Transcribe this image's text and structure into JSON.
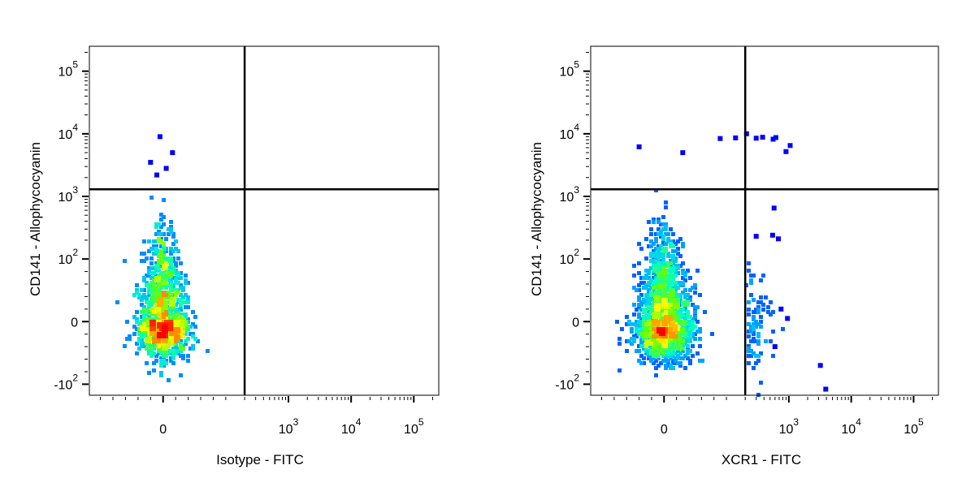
{
  "chart_data": [
    {
      "type": "scatter",
      "plot_style": "flow cytometry density dot plot (pseudocolor)",
      "xlabel": "Isotype - FITC",
      "ylabel": "CD141 - Allophycocyanin",
      "x_scale": "biexponential",
      "y_scale": "biexponential",
      "x_ticks": [
        {
          "value": 0,
          "base": "0",
          "exp": ""
        },
        {
          "value": 1000,
          "base": "10",
          "exp": "3"
        },
        {
          "value": 10000,
          "base": "10",
          "exp": "4"
        },
        {
          "value": 100000,
          "base": "10",
          "exp": "5"
        }
      ],
      "y_ticks": [
        {
          "value": -100,
          "base": "-10",
          "exp": "2"
        },
        {
          "value": 0,
          "base": "0",
          "exp": ""
        },
        {
          "value": 100,
          "base": "10",
          "exp": "2"
        },
        {
          "value": 1000,
          "base": "10",
          "exp": "3"
        },
        {
          "value": 10000,
          "base": "10",
          "exp": "4"
        },
        {
          "value": 100000,
          "base": "10",
          "exp": "5"
        }
      ],
      "xlim": [
        -150,
        250000
      ],
      "ylim": [
        -150,
        250000
      ],
      "quadrant_gate": {
        "x": 200,
        "y": 1300
      },
      "population": {
        "description": "single dense cluster, CD141 negative/low, FITC negative",
        "center": {
          "x": 0,
          "y": 0
        },
        "extends_y_to": 1200,
        "rare_events": [
          {
            "x": -5,
            "y": 9000
          },
          {
            "x": 15,
            "y": 5000
          },
          {
            "x": 5,
            "y": 2800
          },
          {
            "x": -20,
            "y": 3500
          },
          {
            "x": -10,
            "y": 2200
          }
        ]
      },
      "colorscale": [
        "#0000ff",
        "#00aaff",
        "#00ffcc",
        "#66ff00",
        "#ffff00",
        "#ff8800",
        "#ff0000"
      ]
    },
    {
      "type": "scatter",
      "plot_style": "flow cytometry density dot plot (pseudocolor)",
      "xlabel": "XCR1 - FITC",
      "ylabel": "CD141 - Allophycocyanin",
      "x_scale": "biexponential",
      "y_scale": "biexponential",
      "x_ticks": [
        {
          "value": 0,
          "base": "0",
          "exp": ""
        },
        {
          "value": 1000,
          "base": "10",
          "exp": "3"
        },
        {
          "value": 10000,
          "base": "10",
          "exp": "4"
        },
        {
          "value": 100000,
          "base": "10",
          "exp": "5"
        }
      ],
      "y_ticks": [
        {
          "value": -100,
          "base": "-10",
          "exp": "2"
        },
        {
          "value": 0,
          "base": "0",
          "exp": ""
        },
        {
          "value": 100,
          "base": "10",
          "exp": "2"
        },
        {
          "value": 1000,
          "base": "10",
          "exp": "3"
        },
        {
          "value": 10000,
          "base": "10",
          "exp": "4"
        },
        {
          "value": 100000,
          "base": "10",
          "exp": "5"
        }
      ],
      "xlim": [
        -150,
        250000
      ],
      "ylim": [
        -150,
        250000
      ],
      "quadrant_gate": {
        "x": 200,
        "y": 1300
      },
      "population": {
        "description": "dense CD141 negative/low cluster with scattered XCR1+ events and a small CD141+ population",
        "center": {
          "x": 0,
          "y": 0
        },
        "extends_y_to": 1300,
        "rare_events": [
          {
            "x": 300,
            "y": 8500
          },
          {
            "x": 380,
            "y": 8800
          },
          {
            "x": 560,
            "y": 8200
          },
          {
            "x": 620,
            "y": 8700
          },
          {
            "x": 1050,
            "y": 6500
          },
          {
            "x": 900,
            "y": 5200
          },
          {
            "x": 210,
            "y": 10000
          },
          {
            "x": 140,
            "y": 8600
          },
          {
            "x": 90,
            "y": 8400
          },
          {
            "x": -40,
            "y": 6200
          },
          {
            "x": 30,
            "y": 5000
          },
          {
            "x": 580,
            "y": 650
          },
          {
            "x": 550,
            "y": 240
          },
          {
            "x": 680,
            "y": 210
          },
          {
            "x": 300,
            "y": 230
          },
          {
            "x": 3200,
            "y": -70
          },
          {
            "x": 3900,
            "y": -120
          },
          {
            "x": 950,
            "y": 5
          },
          {
            "x": 750,
            "y": 20
          },
          {
            "x": 600,
            "y": -40
          }
        ]
      },
      "colorscale": [
        "#0000ff",
        "#00aaff",
        "#00ffcc",
        "#66ff00",
        "#ffff00",
        "#ff8800",
        "#ff0000"
      ]
    }
  ]
}
